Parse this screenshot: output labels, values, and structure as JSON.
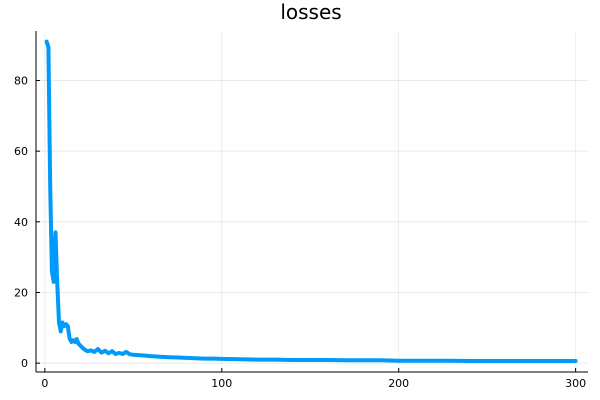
{
  "chart_data": {
    "type": "line",
    "title": "losses",
    "xlabel": "",
    "ylabel": "",
    "xlim": [
      -5,
      307
    ],
    "ylim": [
      -2.5,
      94
    ],
    "xticks": [
      0,
      100,
      200,
      300
    ],
    "yticks": [
      0,
      20,
      40,
      60,
      80
    ],
    "grid": true,
    "legend": "none",
    "series": [
      {
        "color": "#009AFA",
        "x": [
          1,
          2,
          3,
          4,
          5,
          6,
          7,
          8,
          9,
          10,
          11,
          12,
          13,
          14,
          15,
          16,
          17,
          18,
          19,
          20,
          22,
          24,
          26,
          28,
          30,
          32,
          34,
          36,
          38,
          40,
          42,
          44,
          46,
          48,
          50,
          55,
          60,
          65,
          70,
          75,
          80,
          85,
          90,
          95,
          100,
          110,
          120,
          130,
          140,
          150,
          160,
          170,
          180,
          190,
          200,
          210,
          220,
          230,
          240,
          250,
          260,
          270,
          280,
          290,
          300
        ],
        "y": [
          91,
          89.5,
          50,
          26,
          23,
          37,
          23,
          11.5,
          9,
          11.5,
          10.5,
          11,
          10.5,
          7,
          6,
          6.5,
          6,
          6.8,
          5.5,
          5,
          4,
          3.4,
          3.6,
          3.2,
          4,
          3.0,
          3.5,
          2.8,
          3.4,
          2.6,
          2.9,
          2.6,
          3.2,
          2.5,
          2.4,
          2.2,
          2.0,
          1.8,
          1.7,
          1.6,
          1.5,
          1.4,
          1.3,
          1.3,
          1.2,
          1.1,
          1.0,
          1.0,
          0.9,
          0.9,
          0.9,
          0.8,
          0.8,
          0.8,
          0.7,
          0.7,
          0.7,
          0.7,
          0.6,
          0.6,
          0.6,
          0.6,
          0.6,
          0.6,
          0.6
        ]
      }
    ]
  }
}
